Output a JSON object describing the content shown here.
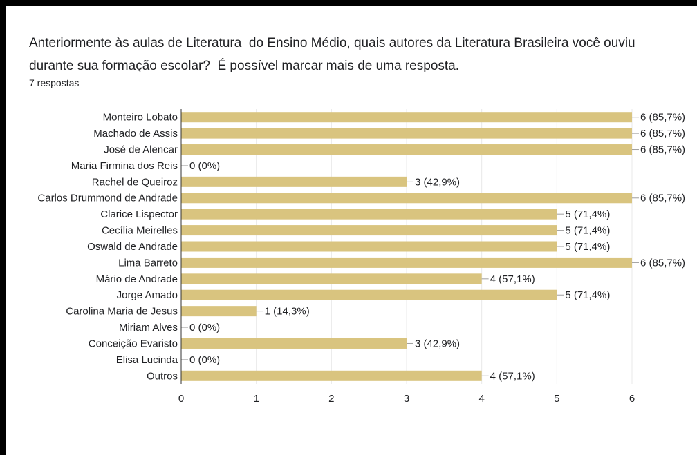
{
  "chart_data": {
    "type": "bar",
    "orientation": "horizontal",
    "title": "Anteriormente às aulas de Literatura  do Ensino Médio, quais autores da Literatura Brasileira você ouviu durante sua formação escolar?  É possível marcar mais de uma resposta.",
    "subtitle": "7 respostas",
    "categories": [
      "Monteiro Lobato",
      "Machado de Assis",
      "José de Alencar",
      "Maria Firmina dos Reis",
      "Rachel de Queiroz",
      "Carlos Drummond de Andrade",
      "Clarice Lispector",
      "Cecília Meirelles",
      "Oswald de Andrade",
      "Lima Barreto",
      "Mário de Andrade",
      "Jorge Amado",
      "Carolina Maria de Jesus",
      "Miriam Alves",
      "Conceição Evaristo",
      "Elisa Lucinda",
      "Outros"
    ],
    "values": [
      6,
      6,
      6,
      0,
      3,
      6,
      5,
      5,
      5,
      6,
      4,
      5,
      1,
      0,
      3,
      0,
      4
    ],
    "value_labels": [
      "6 (85,7%)",
      "6 (85,7%)",
      "6 (85,7%)",
      "0 (0%)",
      "3 (42,9%)",
      "6 (85,7%)",
      "5 (71,4%)",
      "5 (71,4%)",
      "5 (71,4%)",
      "6 (85,7%)",
      "4 (57,1%)",
      "5 (71,4%)",
      "1 (14,3%)",
      "0 (0%)",
      "3 (42,9%)",
      "0 (0%)",
      "4 (57,1%)"
    ],
    "color": "#d9c47f",
    "xlim": [
      0,
      6
    ],
    "xticks": [
      0,
      1,
      2,
      3,
      4,
      5,
      6
    ],
    "grid": true
  }
}
